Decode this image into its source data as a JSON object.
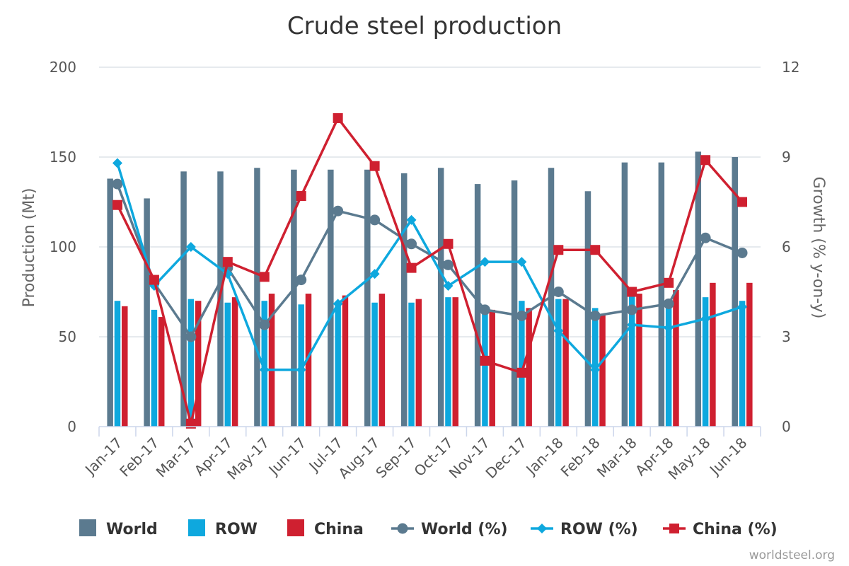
{
  "chart_data": {
    "type": "bar",
    "title": "Crude steel production",
    "categories": [
      "Jan-17",
      "Feb-17",
      "Mar-17",
      "Apr-17",
      "May-17",
      "Jun-17",
      "Jul-17",
      "Aug-17",
      "Sep-17",
      "Oct-17",
      "Nov-17",
      "Dec-17",
      "Jan-18",
      "Feb-18",
      "Mar-18",
      "Apr-18",
      "May-18",
      "Jun-18"
    ],
    "ylabel_left": "Production (Mt)",
    "ylabel_right": "Growth (% y-on-y)",
    "ylim_left": [
      0,
      200
    ],
    "ylim_right": [
      0,
      12
    ],
    "yticks_left": [
      "0",
      "50",
      "100",
      "150",
      "200"
    ],
    "yticks_right": [
      "0",
      "3",
      "6",
      "9",
      "12"
    ],
    "bar_series": [
      {
        "name": "World",
        "color": "#5b7a8f",
        "values": [
          138,
          127,
          142,
          142,
          144,
          143,
          143,
          143,
          141,
          144,
          135,
          137,
          144,
          131,
          147,
          147,
          153,
          150
        ]
      },
      {
        "name": "ROW",
        "color": "#0ea8de",
        "values": [
          70,
          65,
          71,
          69,
          70,
          68,
          69,
          69,
          69,
          72,
          66,
          70,
          71,
          66,
          73,
          70,
          72,
          70
        ]
      },
      {
        "name": "China",
        "color": "#cf2030",
        "values": [
          67,
          61,
          70,
          72,
          74,
          74,
          73,
          74,
          71,
          72,
          65,
          66,
          71,
          62,
          74,
          76,
          80,
          80
        ]
      }
    ],
    "line_series": [
      {
        "name": "World (%)",
        "color": "#5b7a8f",
        "marker": "circle",
        "values": [
          8.1,
          4.8,
          3.0,
          5.3,
          3.4,
          4.9,
          7.2,
          6.9,
          6.1,
          5.4,
          3.9,
          3.7,
          4.5,
          3.7,
          3.9,
          4.1,
          6.3,
          5.8
        ]
      },
      {
        "name": "ROW (%)",
        "color": "#0ea8de",
        "marker": "diamond",
        "values": [
          8.8,
          4.7,
          6.0,
          5.1,
          1.9,
          1.9,
          4.1,
          5.1,
          6.9,
          4.7,
          5.5,
          5.5,
          3.2,
          1.9,
          3.4,
          3.3,
          3.6,
          4.0
        ]
      },
      {
        "name": "China (%)",
        "color": "#cf2030",
        "marker": "square",
        "values": [
          7.4,
          4.9,
          0.1,
          5.5,
          5.0,
          7.7,
          10.3,
          8.7,
          5.3,
          6.1,
          2.2,
          1.8,
          5.9,
          5.9,
          4.5,
          4.8,
          8.9,
          7.5
        ]
      }
    ],
    "legend": [
      "World",
      "ROW",
      "China",
      "World (%)",
      "ROW (%)",
      "China (%)"
    ],
    "legend_position": "bottom",
    "grid": true
  },
  "credit": "worldsteel.org"
}
